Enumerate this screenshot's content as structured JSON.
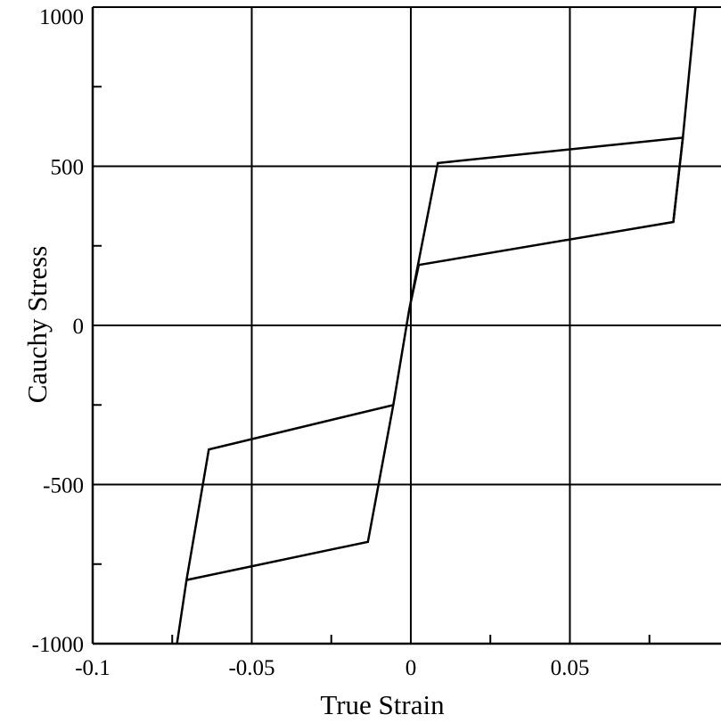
{
  "chart_data": {
    "type": "line",
    "title": "",
    "xlabel": "True Strain",
    "ylabel": "Cauchy Stress",
    "xlim": [
      -0.1,
      0.0975
    ],
    "ylim": [
      -1000,
      1000
    ],
    "grid": true,
    "x_ticks": [
      -0.1,
      -0.05,
      0,
      0.05
    ],
    "x_tick_labels": [
      "-0.1",
      "-0.05",
      "0",
      "0.05"
    ],
    "y_ticks": [
      -1000,
      -500,
      0,
      500,
      1000
    ],
    "y_tick_labels": [
      "-1000",
      "-500",
      "0",
      "500",
      "1000"
    ],
    "series": [
      {
        "name": "",
        "color": "#000000",
        "x": [
          -0.0735,
          -0.0705,
          -0.0135,
          -0.0055,
          -0.0005,
          0.0085,
          0.0855,
          0.0825,
          0.0025,
          -0.0005,
          -0.0055,
          -0.0635,
          -0.0705,
          -0.0735
        ],
        "y": [
          -1000,
          -800,
          -680,
          -250,
          50,
          510,
          590,
          325,
          190,
          50,
          -250,
          -390,
          -800,
          -1000
        ]
      },
      {
        "name": "",
        "color": "#000000",
        "x": [
          0.0825,
          0.0855,
          0.0895
        ],
        "y": [
          325,
          590,
          1000
        ]
      }
    ]
  }
}
